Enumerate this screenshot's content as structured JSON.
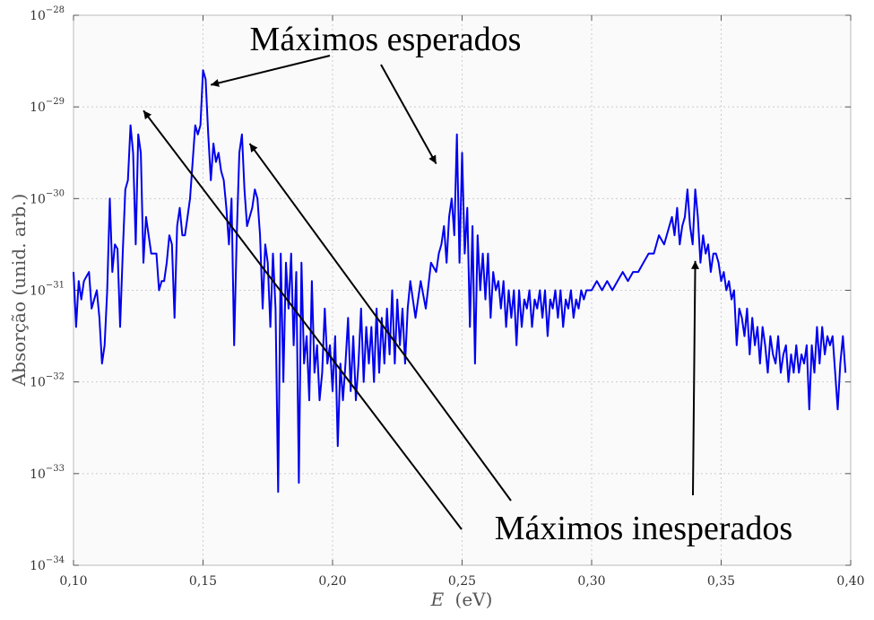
{
  "chart_data": {
    "type": "line",
    "title": "",
    "xlabel": "E (eV)",
    "xlabel_var": "E",
    "xlabel_unit": "(eV)",
    "ylabel": "Absorção (unid. arb.)",
    "xlim": [
      0.1,
      0.4
    ],
    "ylim": [
      1e-34,
      1e-28
    ],
    "yscale": "log",
    "grid": true,
    "x_ticks": [
      {
        "value": 0.1,
        "label": "0,10"
      },
      {
        "value": 0.15,
        "label": "0,15"
      },
      {
        "value": 0.2,
        "label": "0,20"
      },
      {
        "value": 0.25,
        "label": "0,25"
      },
      {
        "value": 0.3,
        "label": "0,30"
      },
      {
        "value": 0.35,
        "label": "0,35"
      },
      {
        "value": 0.4,
        "label": "0,40"
      }
    ],
    "y_ticks": [
      {
        "value": -34,
        "base": "10",
        "exp": "−34"
      },
      {
        "value": -33,
        "base": "10",
        "exp": "−33"
      },
      {
        "value": -32,
        "base": "10",
        "exp": "−32"
      },
      {
        "value": -31,
        "base": "10",
        "exp": "−31"
      },
      {
        "value": -30,
        "base": "10",
        "exp": "−30"
      },
      {
        "value": -29,
        "base": "10",
        "exp": "−29"
      },
      {
        "value": -28,
        "base": "10",
        "exp": "−28"
      }
    ],
    "series": [
      {
        "color": "#0000ee",
        "x": [
          0.1,
          0.101,
          0.102,
          0.103,
          0.104,
          0.105,
          0.106,
          0.107,
          0.108,
          0.109,
          0.11,
          0.111,
          0.112,
          0.113,
          0.114,
          0.115,
          0.116,
          0.117,
          0.118,
          0.119,
          0.12,
          0.121,
          0.122,
          0.123,
          0.124,
          0.125,
          0.126,
          0.127,
          0.128,
          0.129,
          0.13,
          0.131,
          0.132,
          0.133,
          0.134,
          0.135,
          0.136,
          0.137,
          0.138,
          0.139,
          0.14,
          0.141,
          0.142,
          0.143,
          0.144,
          0.145,
          0.146,
          0.147,
          0.148,
          0.149,
          0.15,
          0.151,
          0.152,
          0.153,
          0.154,
          0.155,
          0.156,
          0.157,
          0.158,
          0.159,
          0.16,
          0.161,
          0.162,
          0.163,
          0.164,
          0.165,
          0.166,
          0.167,
          0.168,
          0.169,
          0.17,
          0.171,
          0.172,
          0.173,
          0.174,
          0.175,
          0.176,
          0.177,
          0.178,
          0.179,
          0.18,
          0.181,
          0.182,
          0.183,
          0.184,
          0.185,
          0.186,
          0.187,
          0.188,
          0.189,
          0.19,
          0.191,
          0.192,
          0.193,
          0.194,
          0.195,
          0.196,
          0.197,
          0.198,
          0.199,
          0.2,
          0.201,
          0.202,
          0.203,
          0.204,
          0.205,
          0.206,
          0.207,
          0.208,
          0.209,
          0.21,
          0.211,
          0.212,
          0.213,
          0.214,
          0.215,
          0.216,
          0.217,
          0.218,
          0.219,
          0.22,
          0.221,
          0.222,
          0.223,
          0.224,
          0.225,
          0.226,
          0.227,
          0.228,
          0.229,
          0.23,
          0.232,
          0.234,
          0.236,
          0.238,
          0.24,
          0.241,
          0.242,
          0.243,
          0.244,
          0.245,
          0.246,
          0.247,
          0.248,
          0.249,
          0.25,
          0.251,
          0.252,
          0.253,
          0.254,
          0.255,
          0.256,
          0.257,
          0.258,
          0.259,
          0.26,
          0.261,
          0.262,
          0.263,
          0.264,
          0.265,
          0.266,
          0.267,
          0.268,
          0.269,
          0.27,
          0.271,
          0.272,
          0.273,
          0.274,
          0.275,
          0.276,
          0.277,
          0.278,
          0.279,
          0.28,
          0.281,
          0.282,
          0.283,
          0.284,
          0.285,
          0.286,
          0.287,
          0.288,
          0.289,
          0.29,
          0.291,
          0.292,
          0.293,
          0.294,
          0.295,
          0.296,
          0.297,
          0.298,
          0.299,
          0.3,
          0.302,
          0.304,
          0.306,
          0.308,
          0.31,
          0.312,
          0.314,
          0.316,
          0.318,
          0.32,
          0.322,
          0.324,
          0.326,
          0.328,
          0.33,
          0.331,
          0.332,
          0.333,
          0.334,
          0.335,
          0.336,
          0.337,
          0.338,
          0.339,
          0.34,
          0.341,
          0.342,
          0.343,
          0.344,
          0.345,
          0.346,
          0.347,
          0.348,
          0.349,
          0.35,
          0.351,
          0.352,
          0.353,
          0.354,
          0.355,
          0.356,
          0.357,
          0.358,
          0.359,
          0.36,
          0.361,
          0.362,
          0.363,
          0.364,
          0.365,
          0.366,
          0.367,
          0.368,
          0.369,
          0.37,
          0.371,
          0.372,
          0.373,
          0.374,
          0.375,
          0.376,
          0.377,
          0.378,
          0.379,
          0.38,
          0.381,
          0.382,
          0.383,
          0.384,
          0.385,
          0.386,
          0.387,
          0.388,
          0.389,
          0.39,
          0.391,
          0.392,
          0.393,
          0.394,
          0.395,
          0.396,
          0.397,
          0.398,
          0.399,
          0.4
        ],
        "log_y": [
          -30.8,
          -31.4,
          -30.9,
          -31.1,
          -30.9,
          -30.85,
          -30.8,
          -31.2,
          -31.1,
          -31.0,
          -31.3,
          -31.8,
          -31.6,
          -31.0,
          -30.0,
          -30.8,
          -30.5,
          -30.55,
          -31.4,
          -30.6,
          -29.9,
          -29.8,
          -29.2,
          -29.5,
          -30.5,
          -29.3,
          -29.5,
          -30.7,
          -30.2,
          -30.4,
          -30.6,
          -30.6,
          -30.6,
          -31.0,
          -30.9,
          -30.9,
          -30.7,
          -30.4,
          -30.5,
          -31.3,
          -30.3,
          -30.1,
          -30.4,
          -30.4,
          -30.2,
          -30.0,
          -29.6,
          -29.2,
          -29.3,
          -29.2,
          -28.6,
          -28.7,
          -29.3,
          -29.8,
          -29.4,
          -29.6,
          -29.5,
          -29.7,
          -29.8,
          -30.1,
          -30.5,
          -30.0,
          -31.6,
          -30.4,
          -29.5,
          -29.3,
          -29.9,
          -30.3,
          -30.2,
          -30.1,
          -29.9,
          -30.0,
          -30.4,
          -31.2,
          -30.5,
          -30.7,
          -31.4,
          -30.6,
          -31.2,
          -33.2,
          -30.6,
          -32.0,
          -30.7,
          -31.2,
          -30.6,
          -31.6,
          -30.8,
          -33.1,
          -30.7,
          -31.8,
          -31.5,
          -32.2,
          -30.9,
          -31.9,
          -31.6,
          -32.2,
          -31.9,
          -31.2,
          -31.8,
          -31.6,
          -32.1,
          -31.5,
          -32.7,
          -31.8,
          -32.2,
          -31.8,
          -31.3,
          -32.1,
          -31.5,
          -32.2,
          -31.8,
          -31.2,
          -32.0,
          -31.4,
          -31.8,
          -31.4,
          -32.0,
          -31.2,
          -31.9,
          -31.3,
          -31.8,
          -31.2,
          -31.7,
          -31.0,
          -31.8,
          -31.1,
          -31.6,
          -31.2,
          -31.8,
          -31.2,
          -30.9,
          -31.3,
          -30.9,
          -31.2,
          -30.7,
          -30.8,
          -30.6,
          -30.5,
          -30.3,
          -30.7,
          -30.2,
          -30.0,
          -30.4,
          -29.3,
          -30.7,
          -29.5,
          -30.6,
          -30.1,
          -31.4,
          -30.3,
          -31.8,
          -30.4,
          -31.0,
          -30.6,
          -31.1,
          -30.6,
          -31.3,
          -30.8,
          -31.0,
          -30.9,
          -31.2,
          -30.9,
          -31.4,
          -31.0,
          -31.3,
          -31.0,
          -31.6,
          -31.0,
          -31.4,
          -31.1,
          -31.2,
          -31.0,
          -31.4,
          -31.1,
          -31.2,
          -31.0,
          -31.3,
          -31.0,
          -31.5,
          -31.1,
          -31.2,
          -31.0,
          -31.3,
          -31.0,
          -31.4,
          -31.1,
          -31.2,
          -31.0,
          -31.3,
          -31.1,
          -31.2,
          -31.0,
          -31.1,
          -31.0,
          -31.0,
          -31.0,
          -30.9,
          -31.0,
          -30.9,
          -31.0,
          -30.9,
          -30.8,
          -30.9,
          -30.8,
          -30.8,
          -30.7,
          -30.6,
          -30.6,
          -30.4,
          -30.5,
          -30.3,
          -30.2,
          -30.4,
          -30.1,
          -30.5,
          -30.3,
          -30.2,
          -29.9,
          -30.3,
          -30.5,
          -29.9,
          -30.2,
          -30.7,
          -30.4,
          -30.6,
          -30.5,
          -30.8,
          -30.6,
          -30.6,
          -30.7,
          -30.9,
          -30.8,
          -31.0,
          -30.9,
          -31.1,
          -31.0,
          -31.6,
          -31.2,
          -31.3,
          -31.5,
          -31.2,
          -31.7,
          -31.3,
          -31.6,
          -31.4,
          -31.8,
          -31.4,
          -31.6,
          -31.9,
          -31.5,
          -31.7,
          -31.8,
          -31.5,
          -31.9,
          -31.7,
          -31.6,
          -32.0,
          -31.7,
          -31.9,
          -31.6,
          -31.9,
          -31.7,
          -31.8,
          -31.6,
          -32.3,
          -31.6,
          -31.9,
          -31.4,
          -31.8,
          -31.4,
          -31.7,
          -31.5,
          -31.6,
          -31.5,
          -31.9,
          -32.3,
          -31.8,
          -31.5,
          -31.9
        ]
      }
    ],
    "annotations": [
      {
        "text": "Máximos esperados",
        "points_to": [
          [
            0.153,
            -28.76
          ],
          [
            0.24,
            -29.62
          ]
        ]
      },
      {
        "text": "Máximos inesperados",
        "points_to": [
          [
            0.127,
            -29.04
          ],
          [
            0.168,
            -29.4
          ],
          [
            0.34,
            -30.68
          ]
        ]
      }
    ]
  }
}
